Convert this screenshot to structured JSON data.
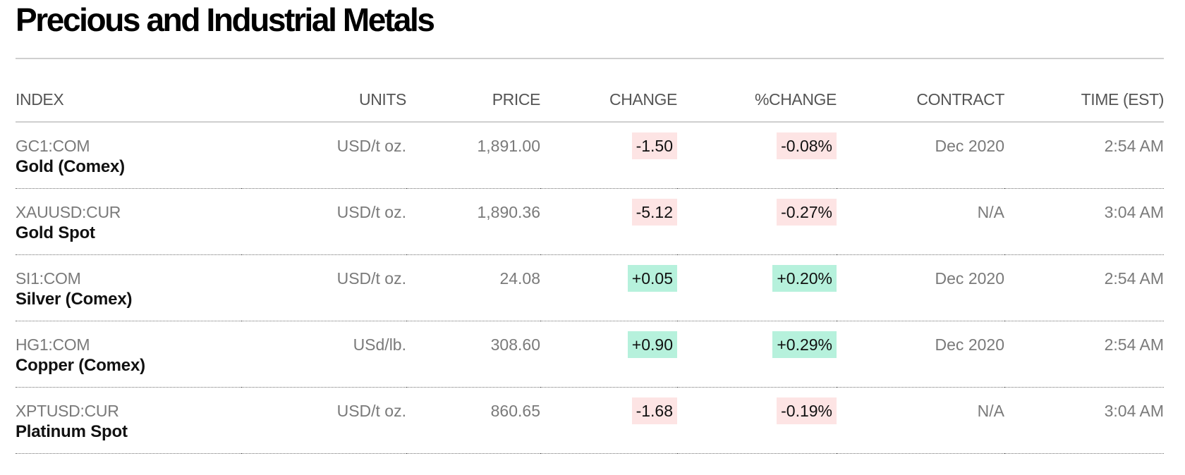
{
  "title": "Precious and Industrial Metals",
  "colors": {
    "negative_bg": "#fde4e4",
    "positive_bg": "#b6f1dc",
    "rule": "#cfcfcf",
    "muted_text": "#7a7a7a"
  },
  "columns": {
    "index": "INDEX",
    "units": "UNITS",
    "price": "PRICE",
    "change": "CHANGE",
    "pct_change": "%CHANGE",
    "contract": "CONTRACT",
    "time": "TIME (EST)"
  },
  "rows": [
    {
      "ticker": "GC1:COM",
      "name": "Gold (Comex)",
      "units": "USD/t oz.",
      "price": "1,891.00",
      "change": "-1.50",
      "pct_change": "-0.08%",
      "direction": "negative",
      "contract": "Dec 2020",
      "time": "2:54 AM"
    },
    {
      "ticker": "XAUUSD:CUR",
      "name": "Gold Spot",
      "units": "USD/t oz.",
      "price": "1,890.36",
      "change": "-5.12",
      "pct_change": "-0.27%",
      "direction": "negative",
      "contract": "N/A",
      "time": "3:04 AM"
    },
    {
      "ticker": "SI1:COM",
      "name": "Silver (Comex)",
      "units": "USD/t oz.",
      "price": "24.08",
      "change": "+0.05",
      "pct_change": "+0.20%",
      "direction": "positive",
      "contract": "Dec 2020",
      "time": "2:54 AM"
    },
    {
      "ticker": "HG1:COM",
      "name": "Copper (Comex)",
      "units": "USd/lb.",
      "price": "308.60",
      "change": "+0.90",
      "pct_change": "+0.29%",
      "direction": "positive",
      "contract": "Dec 2020",
      "time": "2:54 AM"
    },
    {
      "ticker": "XPTUSD:CUR",
      "name": "Platinum Spot",
      "units": "USD/t oz.",
      "price": "860.65",
      "change": "-1.68",
      "pct_change": "-0.19%",
      "direction": "negative",
      "contract": "N/A",
      "time": "3:04 AM"
    }
  ]
}
